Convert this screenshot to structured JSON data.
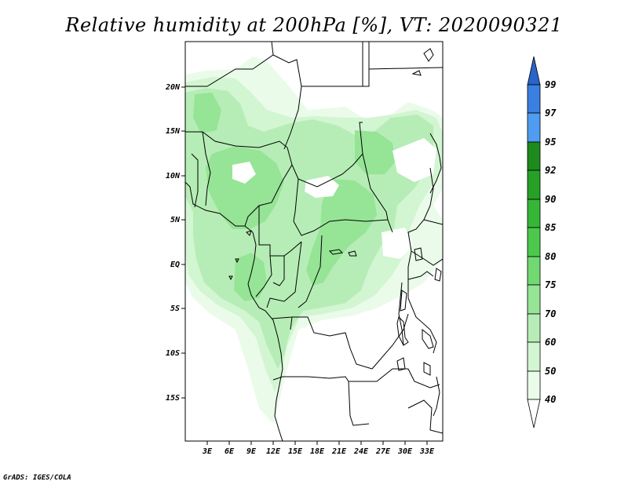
{
  "title": "Relative humidity at 200hPa [%], VT: 2020090321",
  "footer": "GrADS: IGES/COLA",
  "map": {
    "lat_labels": [
      "20N",
      "15N",
      "10N",
      "5N",
      "EQ",
      "5S",
      "10S",
      "15S"
    ],
    "lon_labels": [
      "3E",
      "6E",
      "9E",
      "12E",
      "15E",
      "18E",
      "21E",
      "24E",
      "27E",
      "30E",
      "33E"
    ]
  },
  "colorbar": {
    "levels": [
      "99",
      "97",
      "95",
      "92",
      "90",
      "85",
      "80",
      "75",
      "70",
      "60",
      "50",
      "40"
    ],
    "colors": {
      "over": "#2a64c8",
      "c97_99": "#3b7fe0",
      "c95_97": "#4f9cf0",
      "c92_95": "#1d8a1d",
      "c90_92": "#27a027",
      "c85_90": "#36b636",
      "c80_85": "#4cc84c",
      "c75_80": "#72d872",
      "c70_75": "#96e496",
      "c60_70": "#b6edb6",
      "c50_60": "#d2f5d2",
      "c40_50": "#eafbea",
      "under": "#ffffff"
    }
  }
}
